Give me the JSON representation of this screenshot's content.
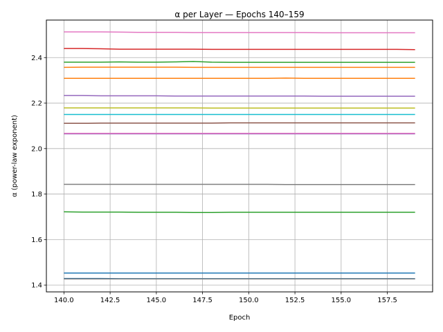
{
  "chart_data": {
    "type": "line",
    "title": "α per Layer — Epochs 140–159",
    "xlabel": "Epoch",
    "ylabel": "α (power-law exponent)",
    "xlim": [
      139.05,
      159.95
    ],
    "ylim": [
      1.37,
      2.565
    ],
    "xticks": [
      140.0,
      142.5,
      145.0,
      147.5,
      150.0,
      152.5,
      155.0,
      157.5
    ],
    "xtick_labels": [
      "140.0",
      "142.5",
      "145.0",
      "147.5",
      "150.0",
      "152.5",
      "155.0",
      "157.5"
    ],
    "yticks": [
      1.4,
      1.6,
      1.8,
      2.0,
      2.2,
      2.4
    ],
    "ytick_labels": [
      "1.4",
      "1.6",
      "1.8",
      "2.0",
      "2.2",
      "2.4"
    ],
    "grid": true,
    "x": [
      140,
      141,
      142,
      143,
      144,
      145,
      146,
      147,
      148,
      149,
      150,
      151,
      152,
      153,
      154,
      155,
      156,
      157,
      158,
      159
    ],
    "series": [
      {
        "color": "#e377c2",
        "values": [
          2.513,
          2.513,
          2.513,
          2.512,
          2.511,
          2.511,
          2.511,
          2.51,
          2.51,
          2.51,
          2.51,
          2.51,
          2.51,
          2.51,
          2.509,
          2.509,
          2.509,
          2.509,
          2.509,
          2.509
        ]
      },
      {
        "color": "#d62728",
        "values": [
          2.44,
          2.44,
          2.439,
          2.437,
          2.437,
          2.437,
          2.437,
          2.437,
          2.436,
          2.436,
          2.436,
          2.436,
          2.436,
          2.436,
          2.436,
          2.436,
          2.436,
          2.436,
          2.436,
          2.435
        ]
      },
      {
        "color": "#2ca02c",
        "values": [
          2.38,
          2.38,
          2.38,
          2.381,
          2.38,
          2.38,
          2.381,
          2.383,
          2.38,
          2.379,
          2.379,
          2.379,
          2.379,
          2.379,
          2.379,
          2.379,
          2.379,
          2.379,
          2.379,
          2.379
        ]
      },
      {
        "color": "#ff7f0e",
        "values": [
          2.357,
          2.358,
          2.358,
          2.358,
          2.358,
          2.358,
          2.358,
          2.357,
          2.357,
          2.357,
          2.357,
          2.357,
          2.357,
          2.357,
          2.357,
          2.357,
          2.357,
          2.357,
          2.357,
          2.357
        ]
      },
      {
        "color": "#ff7f0e",
        "values": [
          2.309,
          2.309,
          2.309,
          2.309,
          2.309,
          2.309,
          2.309,
          2.309,
          2.309,
          2.309,
          2.309,
          2.309,
          2.31,
          2.309,
          2.309,
          2.309,
          2.309,
          2.309,
          2.309,
          2.309
        ]
      },
      {
        "color": "#9467bd",
        "values": [
          2.233,
          2.233,
          2.232,
          2.232,
          2.232,
          2.232,
          2.231,
          2.231,
          2.231,
          2.231,
          2.231,
          2.231,
          2.231,
          2.231,
          2.23,
          2.23,
          2.23,
          2.23,
          2.23,
          2.23
        ]
      },
      {
        "color": "#bcbd22",
        "values": [
          2.179,
          2.179,
          2.179,
          2.179,
          2.179,
          2.179,
          2.179,
          2.179,
          2.178,
          2.178,
          2.178,
          2.178,
          2.178,
          2.178,
          2.178,
          2.178,
          2.178,
          2.178,
          2.178,
          2.178
        ]
      },
      {
        "color": "#17becf",
        "values": [
          2.15,
          2.15,
          2.15,
          2.15,
          2.15,
          2.15,
          2.15,
          2.15,
          2.15,
          2.15,
          2.15,
          2.15,
          2.15,
          2.15,
          2.15,
          2.15,
          2.15,
          2.15,
          2.15,
          2.15
        ]
      },
      {
        "color": "#8c564b",
        "values": [
          2.111,
          2.111,
          2.112,
          2.112,
          2.112,
          2.112,
          2.112,
          2.112,
          2.112,
          2.113,
          2.113,
          2.113,
          2.113,
          2.113,
          2.113,
          2.113,
          2.113,
          2.113,
          2.113,
          2.113
        ]
      },
      {
        "color": "#9467bd",
        "values": [
          2.065,
          2.065,
          2.065,
          2.065,
          2.065,
          2.065,
          2.065,
          2.065,
          2.065,
          2.065,
          2.065,
          2.065,
          2.065,
          2.065,
          2.065,
          2.065,
          2.065,
          2.065,
          2.065,
          2.065
        ]
      },
      {
        "color": "#e377c2",
        "values": [
          2.067,
          2.067,
          2.067,
          2.067,
          2.067,
          2.067,
          2.067,
          2.067,
          2.067,
          2.067,
          2.067,
          2.067,
          2.067,
          2.067,
          2.067,
          2.067,
          2.067,
          2.067,
          2.067,
          2.067
        ]
      },
      {
        "color": "#7f7f7f",
        "values": [
          1.843,
          1.843,
          1.843,
          1.843,
          1.843,
          1.843,
          1.843,
          1.843,
          1.843,
          1.843,
          1.843,
          1.843,
          1.842,
          1.842,
          1.842,
          1.842,
          1.842,
          1.842,
          1.842,
          1.842
        ]
      },
      {
        "color": "#2ca02c",
        "values": [
          1.722,
          1.721,
          1.721,
          1.721,
          1.72,
          1.72,
          1.72,
          1.719,
          1.719,
          1.72,
          1.72,
          1.72,
          1.72,
          1.72,
          1.72,
          1.72,
          1.72,
          1.72,
          1.72,
          1.72
        ]
      },
      {
        "color": "#1f77b4",
        "values": [
          1.453,
          1.453,
          1.453,
          1.453,
          1.453,
          1.453,
          1.453,
          1.453,
          1.453,
          1.453,
          1.453,
          1.453,
          1.453,
          1.453,
          1.453,
          1.453,
          1.453,
          1.453,
          1.453,
          1.453
        ]
      },
      {
        "color": "#1f77b4",
        "values": [
          1.429,
          1.429,
          1.429,
          1.428,
          1.428,
          1.428,
          1.428,
          1.428,
          1.428,
          1.428,
          1.428,
          1.428,
          1.428,
          1.428,
          1.428,
          1.428,
          1.428,
          1.428,
          1.428,
          1.428
        ]
      },
      {
        "color": "#7f7f7f",
        "values": [
          1.427,
          1.427,
          1.427,
          1.427,
          1.427,
          1.427,
          1.427,
          1.427,
          1.427,
          1.427,
          1.427,
          1.427,
          1.427,
          1.427,
          1.427,
          1.427,
          1.427,
          1.427,
          1.427,
          1.427
        ]
      }
    ]
  }
}
